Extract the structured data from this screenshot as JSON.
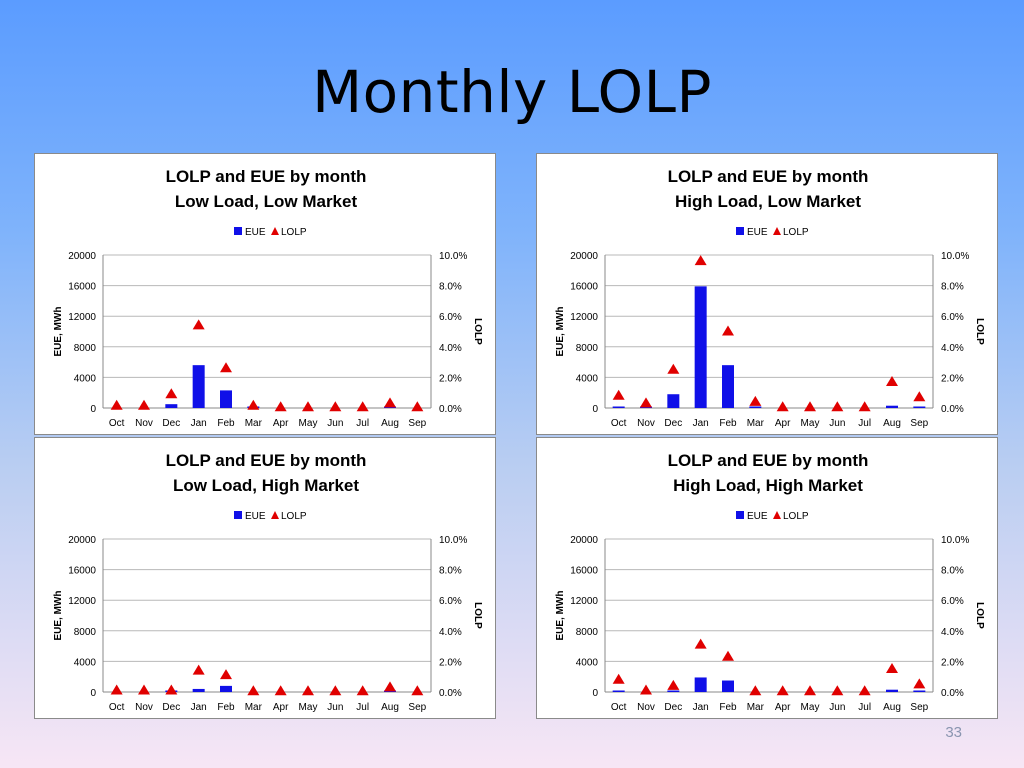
{
  "slide": {
    "title": "Monthly LOLP",
    "page_number": "33"
  },
  "colors": {
    "eue": "#1010e8",
    "lolp": "#e00000",
    "grid": "#b8b8b8"
  },
  "chart_data": [
    {
      "type": "bar",
      "title": [
        "LOLP and EUE by month",
        "Low Load, Low Market"
      ],
      "categories": [
        "Oct",
        "Nov",
        "Dec",
        "Jan",
        "Feb",
        "Mar",
        "Apr",
        "May",
        "Jun",
        "Jul",
        "Aug",
        "Sep"
      ],
      "series": [
        {
          "name": "EUE",
          "axis": "left",
          "values": [
            0,
            0,
            500,
            5600,
            2300,
            100,
            0,
            0,
            0,
            0,
            80,
            0
          ]
        },
        {
          "name": "LOLP",
          "axis": "right",
          "marker": "triangle",
          "values": [
            0.0015,
            0.0015,
            0.009,
            0.054,
            0.026,
            0.0015,
            0.0005,
            0.0005,
            0.0005,
            0.0005,
            0.003,
            0.0005
          ]
        }
      ],
      "ylabel": "EUE, MWh",
      "y2label": "LOLP",
      "ylim": [
        0,
        20000
      ],
      "yticks": [
        "0",
        "4000",
        "8000",
        "12000",
        "16000",
        "20000"
      ],
      "y2lim": [
        0,
        0.1
      ],
      "y2ticks": [
        "0.0%",
        "2.0%",
        "4.0%",
        "6.0%",
        "8.0%",
        "10.0%"
      ],
      "legend": "top"
    },
    {
      "type": "bar",
      "title": [
        "LOLP and EUE by month",
        "High Load, Low Market"
      ],
      "categories": [
        "Oct",
        "Nov",
        "Dec",
        "Jan",
        "Feb",
        "Mar",
        "Apr",
        "May",
        "Jun",
        "Jul",
        "Aug",
        "Sep"
      ],
      "series": [
        {
          "name": "EUE",
          "axis": "left",
          "values": [
            100,
            50,
            1800,
            15900,
            5600,
            200,
            0,
            0,
            0,
            0,
            300,
            100
          ]
        },
        {
          "name": "LOLP",
          "axis": "right",
          "marker": "triangle",
          "values": [
            0.008,
            0.003,
            0.025,
            0.096,
            0.05,
            0.004,
            0.0005,
            0.0005,
            0.0005,
            0.0005,
            0.017,
            0.007
          ]
        }
      ],
      "ylabel": "EUE, MWh",
      "y2label": "LOLP",
      "ylim": [
        0,
        20000
      ],
      "yticks": [
        "0",
        "4000",
        "8000",
        "12000",
        "16000",
        "20000"
      ],
      "y2lim": [
        0,
        0.1
      ],
      "y2ticks": [
        "0.0%",
        "2.0%",
        "4.0%",
        "6.0%",
        "8.0%",
        "10.0%"
      ],
      "legend": "top"
    },
    {
      "type": "bar",
      "title": [
        "LOLP and EUE by month",
        "Low Load, High Market"
      ],
      "categories": [
        "Oct",
        "Nov",
        "Dec",
        "Jan",
        "Feb",
        "Mar",
        "Apr",
        "May",
        "Jun",
        "Jul",
        "Aug",
        "Sep"
      ],
      "series": [
        {
          "name": "EUE",
          "axis": "left",
          "values": [
            0,
            0,
            50,
            400,
            800,
            0,
            0,
            0,
            0,
            0,
            50,
            0
          ]
        },
        {
          "name": "LOLP",
          "axis": "right",
          "marker": "triangle",
          "values": [
            0.001,
            0.001,
            0.001,
            0.014,
            0.011,
            0.0005,
            0.0005,
            0.0005,
            0.0005,
            0.0005,
            0.003,
            0.0005
          ]
        }
      ],
      "ylabel": "EUE, MWh",
      "y2label": "LOLP",
      "ylim": [
        0,
        20000
      ],
      "yticks": [
        "0",
        "4000",
        "8000",
        "12000",
        "16000",
        "20000"
      ],
      "y2lim": [
        0,
        0.1
      ],
      "y2ticks": [
        "0.0%",
        "2.0%",
        "4.0%",
        "6.0%",
        "8.0%",
        "10.0%"
      ],
      "legend": "top"
    },
    {
      "type": "bar",
      "title": [
        "LOLP and EUE by month",
        "High Load, High Market"
      ],
      "categories": [
        "Oct",
        "Nov",
        "Dec",
        "Jan",
        "Feb",
        "Mar",
        "Apr",
        "May",
        "Jun",
        "Jul",
        "Aug",
        "Sep"
      ],
      "series": [
        {
          "name": "EUE",
          "axis": "left",
          "values": [
            100,
            0,
            100,
            1900,
            1500,
            0,
            0,
            0,
            0,
            0,
            300,
            100
          ]
        },
        {
          "name": "LOLP",
          "axis": "right",
          "marker": "triangle",
          "values": [
            0.008,
            0.001,
            0.004,
            0.031,
            0.023,
            0.0005,
            0.0005,
            0.0005,
            0.0005,
            0.0005,
            0.015,
            0.005
          ]
        }
      ],
      "ylabel": "EUE, MWh",
      "y2label": "LOLP",
      "ylim": [
        0,
        20000
      ],
      "yticks": [
        "0",
        "4000",
        "8000",
        "12000",
        "16000",
        "20000"
      ],
      "y2lim": [
        0,
        0.1
      ],
      "y2ticks": [
        "0.0%",
        "2.0%",
        "4.0%",
        "6.0%",
        "8.0%",
        "10.0%"
      ],
      "legend": "top"
    }
  ]
}
